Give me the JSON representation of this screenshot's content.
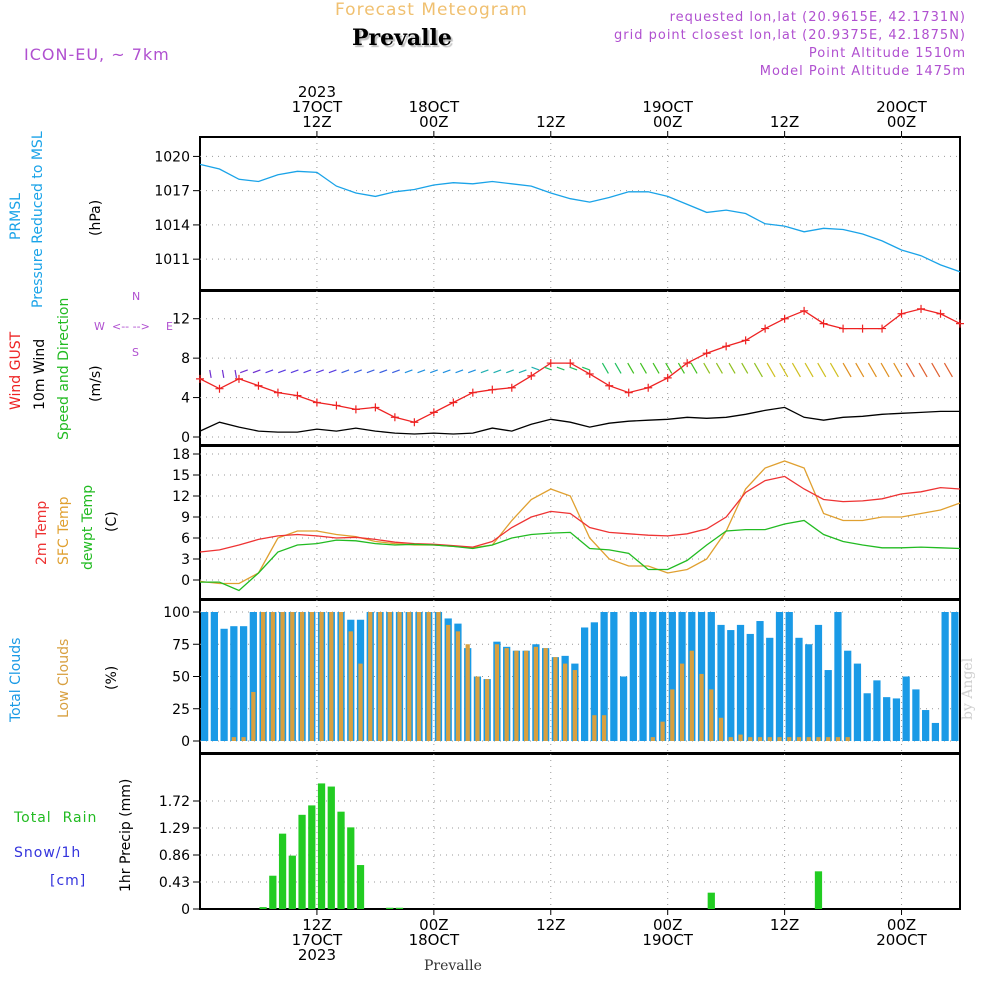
{
  "header": {
    "title": "Forecast Meteogram",
    "location": "Prevalle",
    "model": "ICON-EU, ~ 7km",
    "requested": "requested lon,lat (20.9615E, 42.1731N)",
    "gridpoint": "grid point closest lon,lat (20.9375E, 42.1875N)",
    "point_alt": "Point Altitude 1510m",
    "model_alt": "Model Point Altitude 1475m",
    "footer_location": "Prevalle",
    "watermark": "by Angel"
  },
  "time_axis": {
    "top": [
      {
        "t": 12,
        "lines": [
          "2023",
          "17OCT",
          "12Z"
        ]
      },
      {
        "t": 24,
        "lines": [
          "18OCT",
          "00Z"
        ]
      },
      {
        "t": 36,
        "lines": [
          "12Z"
        ]
      },
      {
        "t": 48,
        "lines": [
          "19OCT",
          "00Z"
        ]
      },
      {
        "t": 60,
        "lines": [
          "12Z"
        ]
      },
      {
        "t": 72,
        "lines": [
          "20OCT",
          "00Z"
        ]
      }
    ],
    "bottom": [
      {
        "t": 12,
        "lines": [
          "12Z",
          "17OCT",
          "2023"
        ]
      },
      {
        "t": 24,
        "lines": [
          "00Z",
          "18OCT"
        ]
      },
      {
        "t": 36,
        "lines": [
          "12Z"
        ]
      },
      {
        "t": 48,
        "lines": [
          "00Z",
          "19OCT"
        ]
      },
      {
        "t": 60,
        "lines": [
          "12Z"
        ]
      },
      {
        "t": 72,
        "lines": [
          "00Z",
          "20OCT"
        ]
      }
    ]
  },
  "panels": {
    "pressure": {
      "labels": [
        "PRMSL",
        "Pressure Reduced to MSL"
      ],
      "unit": "(hPa)"
    },
    "wind": {
      "labels": [
        "Wind GUST",
        "10m Wind",
        "Speed and Direction"
      ],
      "unit": "(m/s)",
      "compass": {
        "n": "N",
        "s": "S",
        "e": "E",
        "w": "W"
      }
    },
    "temp": {
      "labels": [
        "2m Temp",
        "SFC Temp",
        "dewpt Temp"
      ],
      "unit": "(C)"
    },
    "clouds": {
      "labels": [
        "Total Clouds",
        "Low Clouds"
      ],
      "unit": "(%)"
    },
    "precip": {
      "labels": [
        "Total  Rain",
        "Snow/1h",
        "[cm]"
      ],
      "unit": "1hr Precip (mm)"
    }
  },
  "colors": {
    "pressure": "#1aa3e8",
    "gust": "#ee2222",
    "wind": "#000000",
    "t2m": "#ee3333",
    "tsfc": "#e0a030",
    "dewpt": "#22bb22",
    "total_clouds": "#1a9ae6",
    "low_clouds": "#d8a040",
    "precip": "#22cc22",
    "snow": "#3333dd",
    "header_purple": "#b050d0",
    "title_orange": "#f0c070"
  },
  "chart_data": [
    {
      "type": "line",
      "name": "pressure",
      "ylabel": "(hPa)",
      "ylim": [
        1009,
        1021
      ],
      "yticks": [
        1011,
        1014,
        1017,
        1020
      ],
      "xrange": [
        0,
        78
      ],
      "series": [
        {
          "name": "PRMSL",
          "x": [
            0,
            2,
            4,
            6,
            8,
            10,
            12,
            14,
            16,
            18,
            20,
            22,
            24,
            26,
            28,
            30,
            32,
            34,
            36,
            38,
            40,
            42,
            44,
            46,
            48,
            50,
            52,
            54,
            56,
            58,
            60,
            62,
            64,
            66,
            68,
            70,
            72,
            74,
            76,
            78
          ],
          "values": [
            1019.3,
            1018.9,
            1018.0,
            1017.8,
            1018.4,
            1018.7,
            1018.6,
            1017.4,
            1016.8,
            1016.5,
            1016.9,
            1017.1,
            1017.5,
            1017.7,
            1017.6,
            1017.8,
            1017.6,
            1017.4,
            1016.8,
            1016.3,
            1016.0,
            1016.4,
            1016.9,
            1016.9,
            1016.5,
            1015.8,
            1015.1,
            1015.3,
            1015.0,
            1014.1,
            1013.9,
            1013.4,
            1013.7,
            1013.6,
            1013.2,
            1012.6,
            1011.8,
            1011.3,
            1010.5,
            1009.9
          ]
        }
      ]
    },
    {
      "type": "line",
      "name": "wind",
      "ylabel": "(m/s)",
      "ylim": [
        0,
        14
      ],
      "yticks": [
        0,
        4,
        8,
        12
      ],
      "xrange": [
        0,
        78
      ],
      "series": [
        {
          "name": "Wind GUST",
          "x": [
            0,
            2,
            4,
            6,
            8,
            10,
            12,
            14,
            16,
            18,
            20,
            22,
            24,
            26,
            28,
            30,
            32,
            34,
            36,
            38,
            40,
            42,
            44,
            46,
            48,
            50,
            52,
            54,
            56,
            58,
            60,
            62,
            64,
            66,
            68,
            70,
            72,
            74,
            76,
            78
          ],
          "values": [
            5.9,
            4.9,
            5.9,
            5.2,
            4.5,
            4.2,
            3.5,
            3.2,
            2.8,
            3.0,
            2.0,
            1.5,
            2.5,
            3.5,
            4.5,
            4.8,
            5.0,
            6.2,
            7.5,
            7.5,
            6.4,
            5.2,
            4.5,
            5.0,
            6.0,
            7.5,
            8.5,
            9.2,
            9.8,
            11.0,
            12.0,
            12.8,
            11.5,
            11.0,
            11.0,
            11.0,
            12.5,
            13.0,
            12.5,
            11.5
          ]
        },
        {
          "name": "10m Wind",
          "x": [
            0,
            2,
            4,
            6,
            8,
            10,
            12,
            14,
            16,
            18,
            20,
            22,
            24,
            26,
            28,
            30,
            32,
            34,
            36,
            38,
            40,
            42,
            44,
            46,
            48,
            50,
            52,
            54,
            56,
            58,
            60,
            62,
            64,
            66,
            68,
            70,
            72,
            74,
            76,
            78
          ],
          "values": [
            0.6,
            1.5,
            1.0,
            0.6,
            0.5,
            0.5,
            0.8,
            0.6,
            0.9,
            0.6,
            0.4,
            0.3,
            0.4,
            0.3,
            0.4,
            0.9,
            0.6,
            1.3,
            1.8,
            1.5,
            1.0,
            1.4,
            1.6,
            1.7,
            1.8,
            2.0,
            1.9,
            2.0,
            2.3,
            2.7,
            3.0,
            2.0,
            1.7,
            2.0,
            2.1,
            2.3,
            2.4,
            2.5,
            2.6,
            2.6
          ]
        }
      ]
    },
    {
      "type": "line",
      "name": "temperature",
      "ylabel": "(C)",
      "ylim": [
        -1,
        18
      ],
      "yticks": [
        0,
        3,
        6,
        9,
        12,
        15,
        18
      ],
      "xrange": [
        0,
        78
      ],
      "series": [
        {
          "name": "2m Temp",
          "x": [
            0,
            2,
            4,
            6,
            8,
            10,
            12,
            14,
            16,
            18,
            20,
            22,
            24,
            26,
            28,
            30,
            32,
            34,
            36,
            38,
            40,
            42,
            44,
            46,
            48,
            50,
            52,
            54,
            56,
            58,
            60,
            62,
            64,
            66,
            68,
            70,
            72,
            74,
            76,
            78
          ],
          "values": [
            4.0,
            4.3,
            5.0,
            5.8,
            6.3,
            6.5,
            6.3,
            6.0,
            6.1,
            5.8,
            5.4,
            5.2,
            5.1,
            4.9,
            4.7,
            5.5,
            7.5,
            9.0,
            9.8,
            9.5,
            7.5,
            6.8,
            6.6,
            6.4,
            6.3,
            6.6,
            7.3,
            9.0,
            12.5,
            14.2,
            14.8,
            13.0,
            11.5,
            11.2,
            11.3,
            11.6,
            12.3,
            12.6,
            13.2,
            13.0
          ]
        },
        {
          "name": "SFC Temp",
          "x": [
            0,
            2,
            4,
            6,
            8,
            10,
            12,
            14,
            16,
            18,
            20,
            22,
            24,
            26,
            28,
            30,
            32,
            34,
            36,
            38,
            40,
            42,
            44,
            46,
            48,
            50,
            52,
            54,
            56,
            58,
            60,
            62,
            64,
            66,
            68,
            70,
            72,
            74,
            76,
            78
          ],
          "values": [
            -0.2,
            -0.5,
            -0.5,
            1.0,
            6.0,
            7.0,
            7.0,
            6.5,
            6.2,
            5.5,
            5.2,
            5.0,
            5.0,
            4.8,
            4.6,
            5.0,
            8.5,
            11.5,
            13.0,
            12.0,
            6.0,
            3.0,
            2.0,
            2.0,
            1.0,
            1.5,
            3.0,
            7.0,
            13.0,
            16.0,
            17.0,
            16.0,
            9.5,
            8.5,
            8.5,
            9.0,
            9.0,
            9.5,
            10.0,
            11.0
          ]
        },
        {
          "name": "dewpt Temp",
          "x": [
            0,
            2,
            4,
            6,
            8,
            10,
            12,
            14,
            16,
            18,
            20,
            22,
            24,
            26,
            28,
            30,
            32,
            34,
            36,
            38,
            40,
            42,
            44,
            46,
            48,
            50,
            52,
            54,
            56,
            58,
            60,
            62,
            64,
            66,
            68,
            70,
            72,
            74,
            76,
            78
          ],
          "values": [
            -0.3,
            -0.3,
            -1.5,
            1.0,
            4.0,
            5.0,
            5.2,
            5.7,
            5.6,
            5.2,
            5.0,
            5.1,
            5.0,
            4.8,
            4.5,
            5.0,
            6.0,
            6.5,
            6.7,
            6.8,
            4.5,
            4.3,
            3.8,
            1.5,
            1.5,
            2.8,
            5.0,
            7.0,
            7.2,
            7.2,
            8.0,
            8.5,
            6.5,
            5.5,
            5.0,
            4.6,
            4.6,
            4.7,
            4.6,
            4.5
          ]
        }
      ]
    },
    {
      "type": "bar",
      "name": "clouds",
      "ylabel": "(%)",
      "ylim": [
        0,
        100
      ],
      "yticks": [
        0,
        25,
        50,
        75,
        100
      ],
      "xrange": [
        0,
        78
      ],
      "series": [
        {
          "name": "Total Clouds",
          "x": [
            0,
            1,
            2,
            3,
            4,
            5,
            6,
            7,
            8,
            9,
            10,
            11,
            12,
            13,
            14,
            15,
            16,
            17,
            18,
            19,
            20,
            21,
            22,
            23,
            24,
            25,
            26,
            27,
            28,
            29,
            30,
            31,
            32,
            33,
            34,
            35,
            36,
            37,
            38,
            39,
            40,
            41,
            42,
            43,
            44,
            45,
            46,
            47,
            48,
            49,
            50,
            51,
            52,
            53,
            54,
            55,
            56,
            57,
            58,
            59,
            60,
            61,
            62,
            63,
            64,
            65,
            66,
            67,
            68,
            69,
            70,
            71,
            72,
            73,
            74,
            75,
            76,
            77
          ],
          "values": [
            100,
            100,
            87,
            89,
            89,
            100,
            100,
            100,
            100,
            100,
            100,
            100,
            100,
            100,
            100,
            94,
            94,
            100,
            100,
            100,
            100,
            100,
            100,
            100,
            100,
            95,
            91,
            72,
            50,
            48,
            77,
            73,
            70,
            70,
            75,
            72,
            65,
            66,
            60,
            88,
            92,
            100,
            100,
            50,
            100,
            100,
            100,
            100,
            100,
            100,
            100,
            100,
            100,
            90,
            86,
            90,
            83,
            93,
            80,
            100,
            100,
            80,
            75,
            90,
            55,
            100,
            70,
            60,
            37,
            47,
            34,
            33,
            50,
            40,
            24,
            14,
            100,
            100
          ]
        },
        {
          "name": "Low Clouds",
          "x": [
            0,
            1,
            2,
            3,
            4,
            5,
            6,
            7,
            8,
            9,
            10,
            11,
            12,
            13,
            14,
            15,
            16,
            17,
            18,
            19,
            20,
            21,
            22,
            23,
            24,
            25,
            26,
            27,
            28,
            29,
            30,
            31,
            32,
            33,
            34,
            35,
            36,
            37,
            38,
            39,
            40,
            41,
            42,
            43,
            44,
            45,
            46,
            47,
            48,
            49,
            50,
            51,
            52,
            53,
            54,
            55,
            56,
            57,
            58,
            59,
            60,
            61,
            62,
            63,
            64,
            65,
            66,
            67,
            68,
            69,
            70,
            71,
            72,
            73,
            74,
            75,
            76,
            77
          ],
          "values": [
            0,
            0,
            0,
            3,
            3,
            38,
            100,
            100,
            100,
            100,
            100,
            100,
            100,
            100,
            100,
            85,
            60,
            100,
            100,
            100,
            100,
            100,
            100,
            100,
            100,
            90,
            85,
            75,
            50,
            48,
            75,
            72,
            70,
            70,
            73,
            72,
            65,
            60,
            55,
            0,
            20,
            20,
            0,
            0,
            0,
            0,
            3,
            15,
            40,
            60,
            70,
            52,
            40,
            18,
            3,
            5,
            3,
            3,
            3,
            3,
            3,
            3,
            3,
            3,
            3,
            3,
            3,
            0,
            0,
            0,
            0,
            0,
            0,
            0,
            0,
            0,
            0,
            0
          ]
        }
      ]
    },
    {
      "type": "bar",
      "name": "precipitation",
      "ylabel": "1hr Precip (mm)",
      "ylim": [
        0,
        2.15
      ],
      "yticks": [
        0,
        0.43,
        0.86,
        1.29,
        1.72
      ],
      "xrange": [
        0,
        78
      ],
      "series": [
        {
          "name": "Total Rain",
          "x": [
            6,
            7,
            8,
            9,
            10,
            11,
            12,
            13,
            14,
            15,
            16,
            19,
            20,
            52,
            63
          ],
          "values": [
            0.03,
            0.53,
            1.2,
            0.85,
            1.5,
            1.65,
            2.0,
            1.95,
            1.55,
            1.3,
            0.7,
            0.02,
            0.02,
            0.26,
            0.6
          ]
        }
      ]
    }
  ]
}
